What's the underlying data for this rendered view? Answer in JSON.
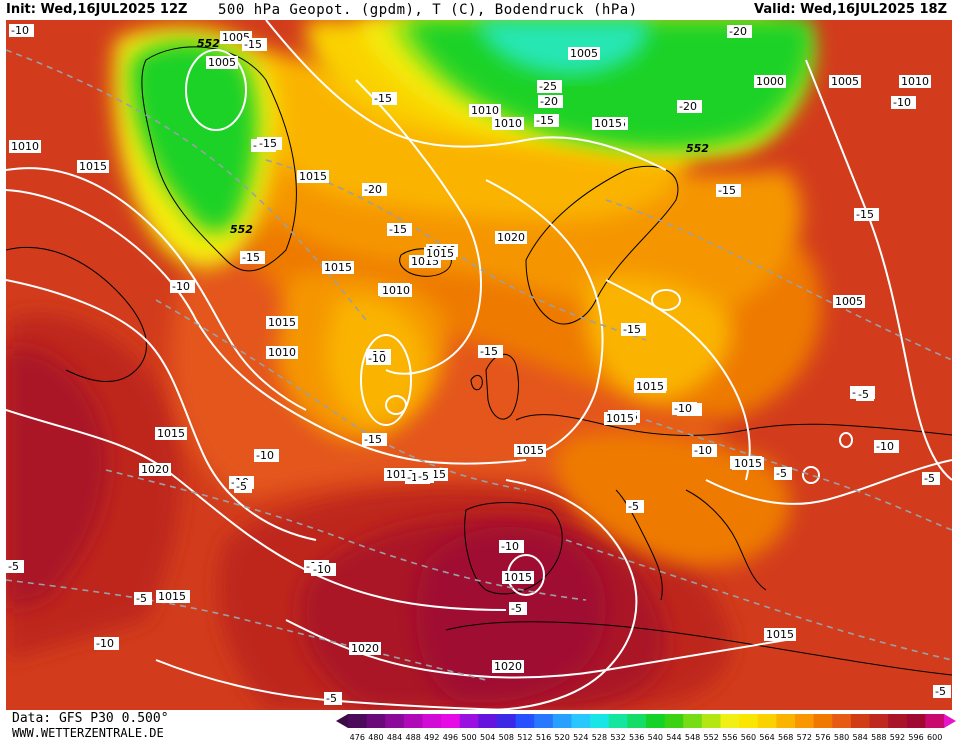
{
  "header": {
    "init": "Init: Wed,16JUL2025 12Z",
    "title": "500 hPa Geopot. (gpdm), T (C), Bodendruck (hPa)",
    "valid": "Valid: Wed,16JUL2025 18Z"
  },
  "footer": {
    "data_source": "Data: GFS P30 0.500°",
    "website": "WWW.WETTERZENTRALE.DE"
  },
  "colorbar": {
    "values": [
      "476",
      "480",
      "484",
      "488",
      "492",
      "496",
      "500",
      "504",
      "508",
      "512",
      "516",
      "520",
      "524",
      "528",
      "532",
      "536",
      "540",
      "544",
      "548",
      "552",
      "556",
      "560",
      "564",
      "568",
      "572",
      "576",
      "580",
      "584",
      "588",
      "592",
      "596",
      "600"
    ],
    "colors": [
      "#4b0a5a",
      "#6a0a7a",
      "#8c0a9a",
      "#b00ab8",
      "#d20ad6",
      "#e60ae6",
      "#9a10e0",
      "#6414dc",
      "#3c28e6",
      "#2850ff",
      "#2878ff",
      "#28a0ff",
      "#28c8ff",
      "#18e6e6",
      "#14e6a0",
      "#14dc64",
      "#14d228",
      "#3cd214",
      "#78dc14",
      "#b4e614",
      "#f0f014",
      "#fae600",
      "#fad200",
      "#fab400",
      "#fa9600",
      "#f07800",
      "#e65a14",
      "#d23c14",
      "#be281e",
      "#aa1428",
      "#a00a32",
      "#c80a6e"
    ]
  },
  "map": {
    "colors": {
      "green": "#1ed228",
      "lime": "#a0e614",
      "yellow": "#f5eb10",
      "yellow_orange": "#fad200",
      "light_orange": "#fab400",
      "orange": "#f59600",
      "dark_orange": "#ee7a00",
      "orange_red": "#e4571a",
      "red": "#d23c1c",
      "dark_red": "#be281e",
      "crimson": "#aa1428",
      "magenta_red": "#a00a32",
      "teal": "#28e6b4"
    },
    "geopotential_labels": [
      "552",
      "552",
      "552"
    ],
    "pressure_labels": [
      "1010",
      "1005",
      "1005",
      "1005",
      "1000",
      "1005",
      "1010",
      "1010",
      "1010",
      "1015",
      "1015",
      "1015",
      "1015",
      "1010",
      "1010",
      "1020",
      "1015",
      "1015",
      "1005",
      "1010",
      "1010",
      "1005",
      "1010",
      "1015",
      "1020",
      "1015",
      "1020",
      "1020",
      "1015",
      "1020",
      "1015",
      "1010",
      "1015",
      "1015",
      "1015",
      "1015",
      "1015",
      "1015",
      "1015",
      "1010"
    ],
    "temperature_labels": [
      "-10",
      "-15",
      "-15",
      "-25",
      "-20",
      "-20",
      "-20",
      "-15",
      "-15",
      "-15",
      "-10",
      "-15",
      "-20",
      "-15",
      "-15",
      "-15",
      "-10",
      "-15",
      "-10",
      "-15",
      "-15",
      "-15",
      "-15",
      "-10",
      "-10",
      "-15",
      "-10",
      "-10",
      "-10",
      "-10",
      "-5",
      "-5",
      "-10",
      "-10",
      "-5",
      "-5",
      "-5",
      "-5",
      "-5",
      "-5",
      "-5",
      "-5",
      "-5",
      "-10",
      "-10"
    ]
  }
}
